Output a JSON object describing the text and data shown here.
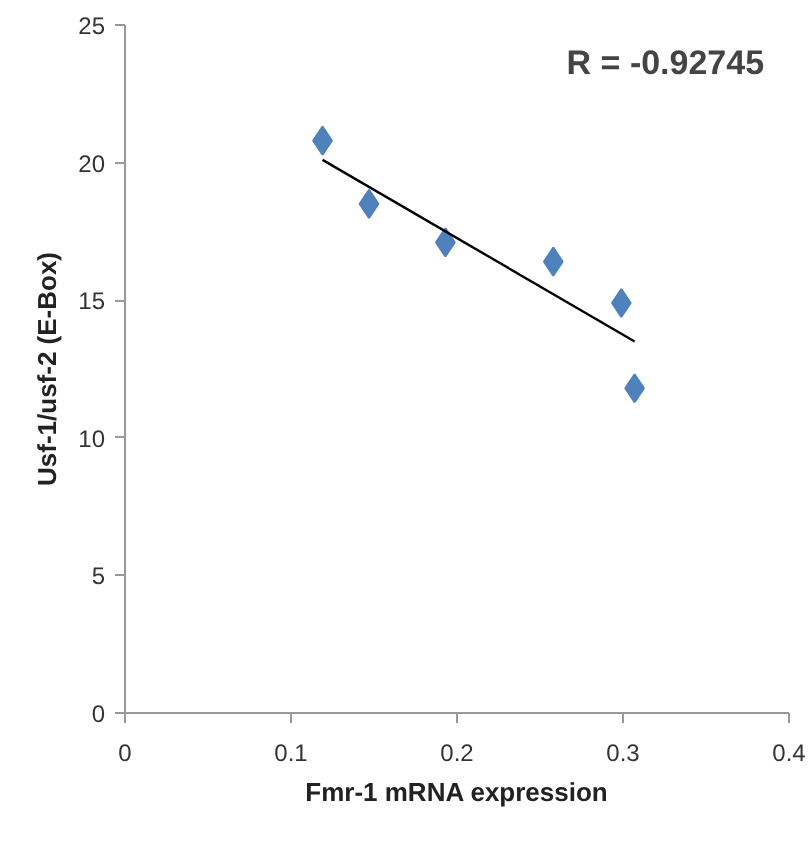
{
  "chart_data": {
    "type": "scatter",
    "xlabel": "Fmr-1 mRNA expression",
    "ylabel": "Usf-1/usf-2 (E-Box)",
    "annotations": [
      "R = -0.92745"
    ],
    "x": [
      0.119,
      0.147,
      0.193,
      0.258,
      0.299,
      0.307
    ],
    "series": [
      {
        "color": "#4f81bd",
        "values": [
          20.8,
          18.5,
          17.1,
          16.4,
          14.9,
          11.8
        ]
      },
      {
        "type": "line",
        "marker": "none",
        "color": "#000000",
        "x": [
          0.119,
          0.307
        ],
        "values": [
          20.1,
          13.5
        ]
      }
    ],
    "xlim": [
      0,
      0.4
    ],
    "ylim": [
      0,
      25
    ],
    "xticks": [
      0,
      0.1,
      0.2,
      0.3,
      0.4
    ],
    "yticks": [
      0,
      5,
      10,
      15,
      20,
      25
    ],
    "grid": false,
    "marker": "diamond"
  }
}
